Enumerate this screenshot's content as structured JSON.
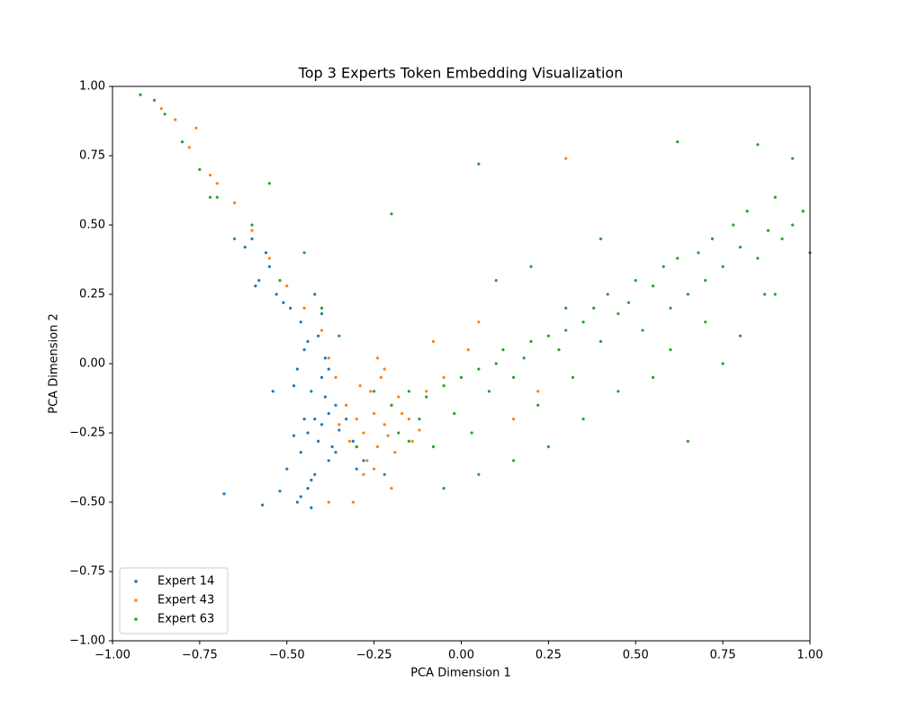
{
  "chart_data": {
    "type": "scatter",
    "title": "Top 3 Experts Token Embedding Visualization",
    "x_label": "PCA Dimension 1",
    "y_label": "PCA Dimension 2",
    "xlim": [
      -1,
      1
    ],
    "ylim": [
      -1,
      1
    ],
    "xticks": [
      {
        "value": -1,
        "label": "−1.00"
      },
      {
        "value": -0.75,
        "label": "−0.75"
      },
      {
        "value": -0.5,
        "label": "−0.50"
      },
      {
        "value": -0.25,
        "label": "−0.25"
      },
      {
        "value": 0,
        "label": "0.00"
      },
      {
        "value": 0.25,
        "label": "0.25"
      },
      {
        "value": 0.5,
        "label": "0.50"
      },
      {
        "value": 0.75,
        "label": "0.75"
      },
      {
        "value": 1,
        "label": "1.00"
      }
    ],
    "yticks": [
      {
        "value": -1,
        "label": "−1.00"
      },
      {
        "value": -0.75,
        "label": "−0.75"
      },
      {
        "value": -0.5,
        "label": "−0.50"
      },
      {
        "value": -0.25,
        "label": "−0.25"
      },
      {
        "value": 0,
        "label": "0.00"
      },
      {
        "value": 0.25,
        "label": "0.25"
      },
      {
        "value": 0.5,
        "label": "0.50"
      },
      {
        "value": 0.75,
        "label": "0.75"
      },
      {
        "value": 1,
        "label": "1.00"
      }
    ],
    "grid": false,
    "legend": "lower-left",
    "series": [
      {
        "name": "Expert 14",
        "color": "#1f77b4",
        "x": [
          -0.42,
          -0.4,
          -0.38,
          -0.44,
          -0.36,
          -0.41,
          -0.39,
          -0.45,
          -0.35,
          -0.43,
          -0.37,
          -0.4,
          -0.46,
          -0.33,
          -0.38,
          -0.42,
          -0.48,
          -0.31,
          -0.44,
          -0.39,
          -0.5,
          -0.47,
          -0.43,
          -0.52,
          -0.41,
          -0.46,
          -0.45,
          -0.49,
          -0.53,
          -0.58,
          -0.55,
          -0.51,
          -0.47,
          -0.44,
          -0.4,
          -0.48,
          -0.56,
          -0.6,
          -0.62,
          -0.59,
          -0.43,
          -0.36,
          -0.3,
          -0.28,
          -0.54,
          -0.46,
          -0.42,
          -0.57,
          -0.68,
          -0.38
        ],
        "values": [
          -0.2,
          -0.22,
          -0.18,
          -0.25,
          -0.15,
          -0.28,
          -0.12,
          -0.2,
          -0.24,
          -0.1,
          -0.3,
          -0.05,
          -0.32,
          -0.2,
          -0.35,
          -0.4,
          -0.26,
          -0.28,
          -0.45,
          0.02,
          -0.38,
          -0.5,
          -0.52,
          -0.46,
          0.1,
          0.15,
          0.05,
          0.2,
          0.25,
          0.3,
          0.35,
          0.22,
          -0.02,
          0.08,
          0.18,
          -0.08,
          0.4,
          0.45,
          0.42,
          0.28,
          -0.42,
          -0.32,
          -0.38,
          -0.35,
          -0.1,
          -0.48,
          0.25,
          -0.51,
          -0.47,
          -0.02
        ]
      },
      {
        "name": "Expert 43",
        "color": "#ff7f0e",
        "x": [
          -0.25,
          -0.22,
          -0.28,
          -0.2,
          -0.3,
          -0.24,
          -0.18,
          -0.26,
          -0.32,
          -0.15,
          -0.23,
          -0.27,
          -0.21,
          -0.29,
          -0.19,
          -0.33,
          -0.12,
          -0.25,
          -0.22,
          -0.35,
          -0.17,
          -0.28,
          -0.24,
          -0.3,
          -0.1,
          -0.05,
          0.02,
          0.05,
          -0.08,
          -0.14,
          -0.36,
          -0.38,
          -0.4,
          -0.45,
          -0.5,
          -0.55,
          -0.6,
          -0.65,
          -0.72,
          -0.78,
          -0.82,
          -0.86,
          -0.76,
          -0.7,
          0.3,
          0.15,
          0.22,
          -0.2,
          -0.31,
          -0.38
        ],
        "values": [
          -0.18,
          -0.22,
          -0.25,
          -0.15,
          -0.2,
          -0.3,
          -0.12,
          -0.1,
          -0.28,
          -0.2,
          -0.05,
          -0.35,
          -0.26,
          -0.08,
          -0.32,
          -0.15,
          -0.24,
          -0.38,
          -0.02,
          -0.22,
          -0.18,
          -0.4,
          0.02,
          -0.3,
          -0.1,
          -0.05,
          0.05,
          0.15,
          0.08,
          -0.28,
          -0.05,
          0.02,
          0.12,
          0.2,
          0.28,
          0.38,
          0.48,
          0.58,
          0.68,
          0.78,
          0.88,
          0.92,
          0.85,
          0.65,
          0.74,
          -0.2,
          -0.1,
          -0.45,
          -0.5,
          -0.5
        ]
      },
      {
        "name": "Expert 63",
        "color": "#2ca02c",
        "x": [
          -0.2,
          -0.15,
          -0.1,
          -0.05,
          0.0,
          0.05,
          0.1,
          -0.18,
          -0.12,
          -0.08,
          -0.02,
          0.03,
          0.08,
          0.12,
          0.15,
          0.18,
          0.2,
          0.22,
          0.25,
          0.28,
          0.3,
          0.32,
          0.35,
          0.38,
          0.4,
          0.42,
          0.45,
          0.48,
          0.5,
          0.52,
          0.55,
          0.58,
          0.6,
          0.62,
          0.65,
          0.68,
          0.7,
          0.72,
          0.75,
          0.78,
          0.8,
          0.82,
          0.85,
          0.88,
          0.9,
          0.92,
          0.95,
          0.98,
          1.0,
          0.6,
          0.7,
          0.8,
          0.9,
          0.45,
          0.35,
          0.25,
          0.15,
          0.05,
          -0.05,
          -0.15,
          -0.25,
          -0.3,
          -0.22,
          0.1,
          0.2,
          0.3,
          0.4,
          0.55,
          0.65,
          0.75,
          0.85,
          0.95,
          -0.35,
          -0.45,
          -0.55,
          -0.6,
          -0.65,
          -0.7,
          -0.75,
          -0.8,
          -0.85,
          -0.88,
          -0.92,
          -0.72,
          -0.52,
          -0.4,
          0.05,
          -0.2,
          0.62,
          0.87
        ],
        "values": [
          -0.15,
          -0.1,
          -0.12,
          -0.08,
          -0.05,
          -0.02,
          0.0,
          -0.25,
          -0.2,
          -0.3,
          -0.18,
          -0.25,
          -0.1,
          0.05,
          -0.05,
          0.02,
          0.08,
          -0.15,
          0.1,
          0.05,
          0.12,
          -0.05,
          0.15,
          0.2,
          0.08,
          0.25,
          0.18,
          0.22,
          0.3,
          0.12,
          0.28,
          0.35,
          0.2,
          0.38,
          0.25,
          0.4,
          0.3,
          0.45,
          0.35,
          0.5,
          0.42,
          0.55,
          0.38,
          0.48,
          0.6,
          0.45,
          0.5,
          0.55,
          0.4,
          0.05,
          0.15,
          0.1,
          0.25,
          -0.1,
          -0.2,
          -0.3,
          -0.35,
          -0.4,
          -0.45,
          -0.28,
          -0.1,
          -0.3,
          -0.4,
          0.3,
          0.35,
          0.2,
          0.45,
          -0.05,
          -0.28,
          0.0,
          0.79,
          0.74,
          0.1,
          0.4,
          0.65,
          0.5,
          0.45,
          0.6,
          0.7,
          0.8,
          0.9,
          0.95,
          0.97,
          0.6,
          0.3,
          0.2,
          0.72,
          0.54,
          0.8,
          0.25
        ]
      }
    ]
  }
}
